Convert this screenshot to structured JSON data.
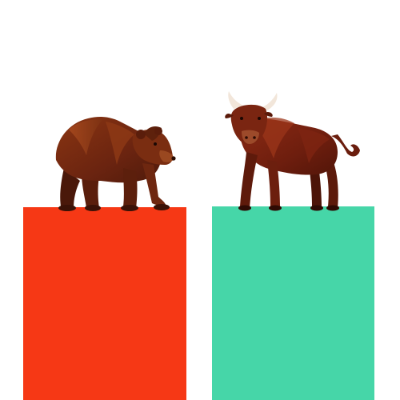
{
  "scene": {
    "background": "#ffffff",
    "left_block": {
      "color": "#f63815",
      "label": "bear-side"
    },
    "right_block": {
      "color": "#46d6a8",
      "label": "bull-side"
    },
    "bear": {
      "icon": "bear-icon",
      "color": "#7a2a10"
    },
    "bull": {
      "icon": "bull-icon",
      "color": "#7a2212"
    }
  }
}
